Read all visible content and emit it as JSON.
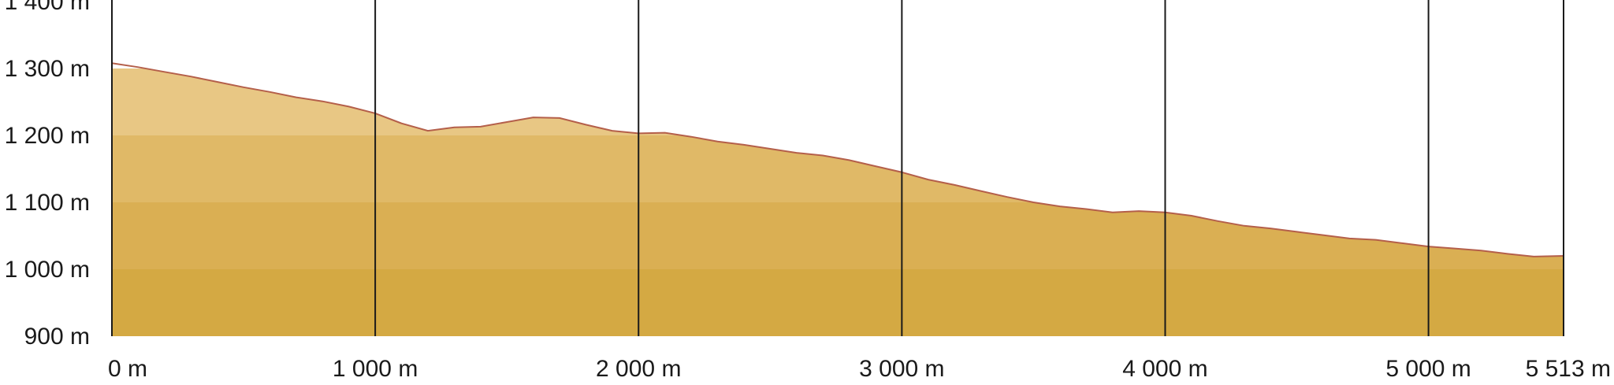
{
  "chart_data": {
    "type": "area",
    "title": "",
    "xlabel": "",
    "ylabel": "",
    "xlim": [
      0,
      5513
    ],
    "ylim": [
      900,
      1400
    ],
    "x_ticks": [
      {
        "value": 0,
        "label": "0 m"
      },
      {
        "value": 1000,
        "label": "1 000 m"
      },
      {
        "value": 2000,
        "label": "2 000 m"
      },
      {
        "value": 3000,
        "label": "3 000 m"
      },
      {
        "value": 4000,
        "label": "4 000 m"
      },
      {
        "value": 5000,
        "label": "5 000 m"
      },
      {
        "value": 5513,
        "label": "5 513 m"
      }
    ],
    "y_ticks": [
      {
        "value": 900,
        "label": "900 m"
      },
      {
        "value": 1000,
        "label": "1 000 m"
      },
      {
        "value": 1100,
        "label": "1 100 m"
      },
      {
        "value": 1200,
        "label": "1 200 m"
      },
      {
        "value": 1300,
        "label": "1 300 m"
      },
      {
        "value": 1400,
        "label": "1 400 m"
      }
    ],
    "band_colors": [
      "#d4a943",
      "#daaf53",
      "#e0b967",
      "#e8c784"
    ],
    "outline_color": "#b45f4a",
    "series": [
      {
        "x": [
          0,
          100,
          200,
          300,
          400,
          500,
          600,
          700,
          800,
          900,
          1000,
          1100,
          1200,
          1300,
          1400,
          1500,
          1600,
          1700,
          1800,
          1900,
          2000,
          2100,
          2200,
          2300,
          2400,
          2500,
          2600,
          2700,
          2800,
          2900,
          3000,
          3100,
          3200,
          3300,
          3400,
          3500,
          3600,
          3700,
          3800,
          3900,
          4000,
          4100,
          4200,
          4300,
          4400,
          4500,
          4600,
          4700,
          4800,
          4900,
          5000,
          5100,
          5200,
          5300,
          5400,
          5513
        ],
        "y": [
          1308,
          1302,
          1295,
          1288,
          1280,
          1272,
          1265,
          1257,
          1251,
          1243,
          1233,
          1218,
          1207,
          1212,
          1213,
          1220,
          1227,
          1226,
          1216,
          1207,
          1203,
          1204,
          1198,
          1191,
          1186,
          1180,
          1174,
          1170,
          1163,
          1154,
          1145,
          1134,
          1126,
          1117,
          1108,
          1100,
          1094,
          1090,
          1085,
          1087,
          1085,
          1080,
          1072,
          1065,
          1061,
          1056,
          1051,
          1046,
          1044,
          1039,
          1034,
          1031,
          1028,
          1023,
          1019,
          1020
        ]
      }
    ]
  }
}
